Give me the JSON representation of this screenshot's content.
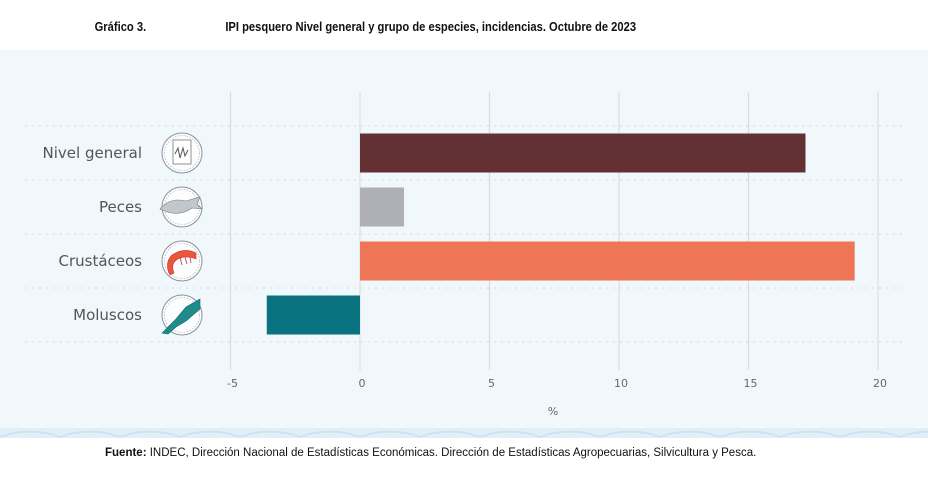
{
  "header": {
    "figure_number": "Gráfico 3.",
    "title": "IPI pesquero Nivel general y grupo de especies, incidencias. Octubre de 2023"
  },
  "footer": {
    "source_label": "Fuente:",
    "source_text": " INDEC, Dirección Nacional de Estadísticas Económicas. Dirección de Estadísticas Agropecuarias, Silvicultura y Pesca."
  },
  "chart_data": {
    "type": "bar",
    "orientation": "horizontal",
    "title": "IPI pesquero Nivel general y grupo de especies, incidencias. Octubre de 2023",
    "categories": [
      "Nivel general",
      "Peces",
      "Crustáceos",
      "Moluscos"
    ],
    "category_icons": [
      "chart-document-icon",
      "fish-icon",
      "shrimp-icon",
      "squid-icon"
    ],
    "values": [
      17.2,
      1.7,
      19.1,
      -3.6
    ],
    "colors": [
      "#633034",
      "#aeafb7",
      "#ee7656",
      "#0b7380"
    ],
    "xlabel": "%",
    "ylabel": "",
    "xlim": [
      -5,
      20
    ],
    "xticks": [
      -5,
      0,
      5,
      10,
      15,
      20
    ],
    "xtick_labels": [
      "-5",
      "0",
      "5",
      "10",
      "15",
      "20"
    ],
    "grid": true,
    "legend": "none"
  }
}
